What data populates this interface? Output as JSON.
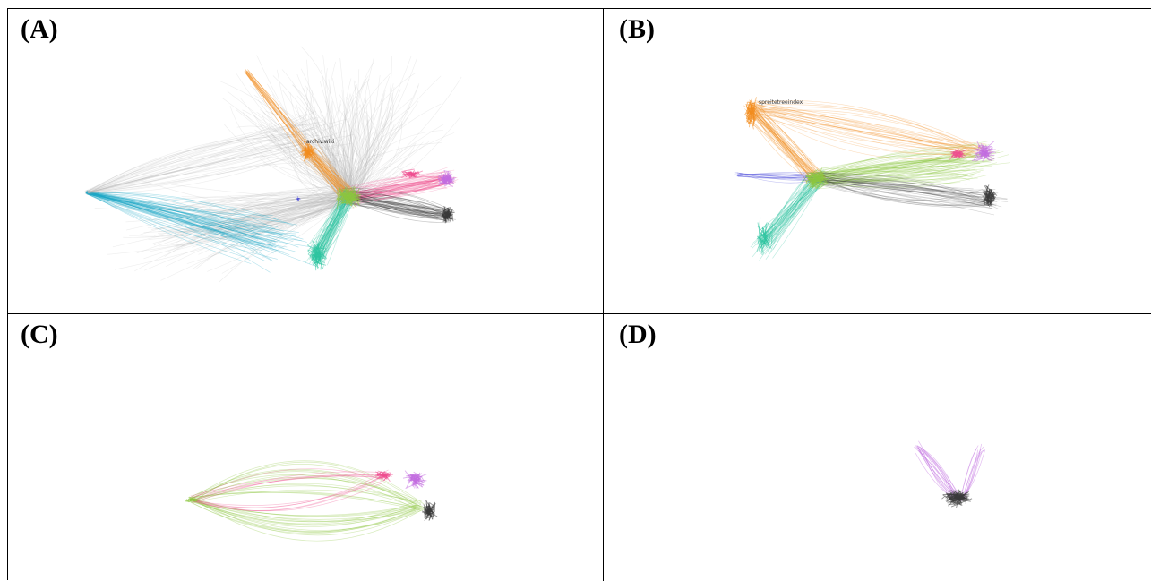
{
  "page": {
    "header_text": "",
    "panels": [
      {
        "id": "A",
        "label": "(A)",
        "node_label": "archiv.wiki"
      },
      {
        "id": "B",
        "label": "(B)",
        "node_label": "spreitetreeindex"
      },
      {
        "id": "C",
        "label": "(C)",
        "node_label": ""
      },
      {
        "id": "D",
        "label": "(D)",
        "node_label": ""
      }
    ]
  },
  "colors": {
    "orange": "#f28c1e",
    "green": "#8cc63f",
    "teal": "#2ec4a0",
    "cyan": "#1aa6c7",
    "blue": "#3a3ad6",
    "pink": "#ef4f8f",
    "purple": "#c26ee0",
    "dark": "#3a3a3a",
    "grey": "#b8b8b8"
  }
}
